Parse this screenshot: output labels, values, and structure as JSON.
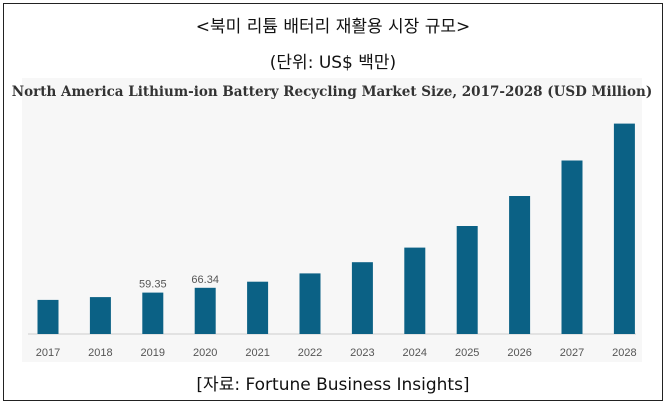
{
  "header": {
    "title": "<북미 리튬 배터리 재활용 시장 규모>",
    "unit": "(단위: US$ 백만)"
  },
  "footer": {
    "source": "[자료: Fortune Business Insights]"
  },
  "colors": {
    "bar": "#0b6185",
    "axis": "#cccccc",
    "panel": "#f7f7f7"
  },
  "chart_data": {
    "type": "bar",
    "title": "North America Lithium-ion Battery Recycling Market Size, 2017-2028 (USD Million)",
    "xlabel": "",
    "ylabel": "",
    "categories": [
      "2017",
      "2018",
      "2019",
      "2020",
      "2021",
      "2022",
      "2023",
      "2024",
      "2025",
      "2026",
      "2027",
      "2028"
    ],
    "values": [
      49,
      53,
      59.35,
      66.34,
      75,
      87,
      103,
      124,
      155,
      198,
      249,
      302
    ],
    "data_labels": [
      {
        "index": 2,
        "text": "59.35"
      },
      {
        "index": 3,
        "text": "66.34"
      }
    ],
    "ylim": [
      0,
      310
    ],
    "grid": false,
    "legend": "none"
  }
}
